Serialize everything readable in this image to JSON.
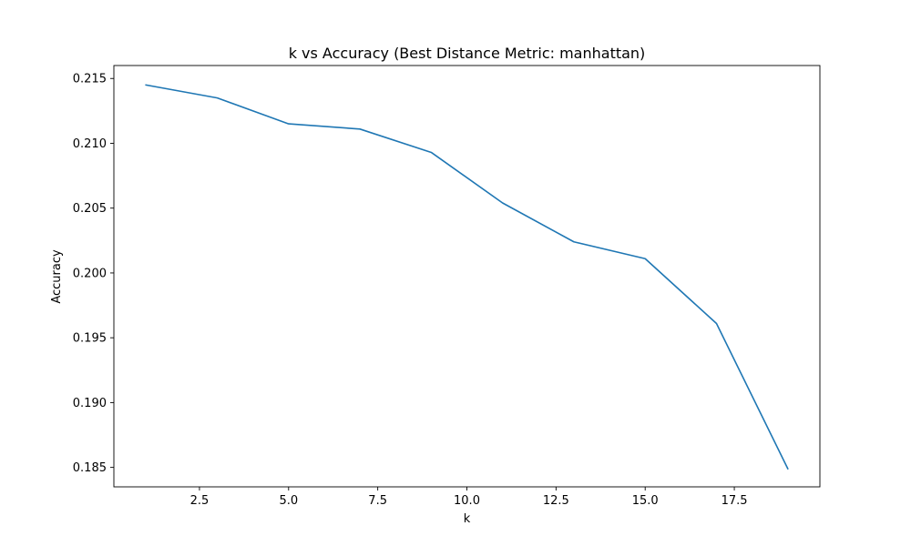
{
  "chart_data": {
    "type": "line",
    "title": "k vs Accuracy (Best Distance Metric: manhattan)",
    "xlabel": "k",
    "ylabel": "Accuracy",
    "xlim": [
      0.1,
      19.9
    ],
    "ylim": [
      0.1835,
      0.216
    ],
    "xticks": [
      2.5,
      5.0,
      7.5,
      10.0,
      12.5,
      15.0,
      17.5
    ],
    "xtick_labels": [
      "2.5",
      "5.0",
      "7.5",
      "10.0",
      "12.5",
      "15.0",
      "17.5"
    ],
    "yticks": [
      0.185,
      0.19,
      0.195,
      0.2,
      0.205,
      0.21,
      0.215
    ],
    "ytick_labels": [
      "0.185",
      "0.190",
      "0.195",
      "0.200",
      "0.205",
      "0.210",
      "0.215"
    ],
    "grid": false,
    "series": [
      {
        "color": "#1f77b4",
        "x": [
          1,
          3,
          5,
          7,
          9,
          11,
          13,
          15,
          17,
          19
        ],
        "y": [
          0.2145,
          0.2135,
          0.2115,
          0.2111,
          0.2093,
          0.2054,
          0.2024,
          0.2011,
          0.1961,
          0.1849
        ]
      }
    ]
  }
}
